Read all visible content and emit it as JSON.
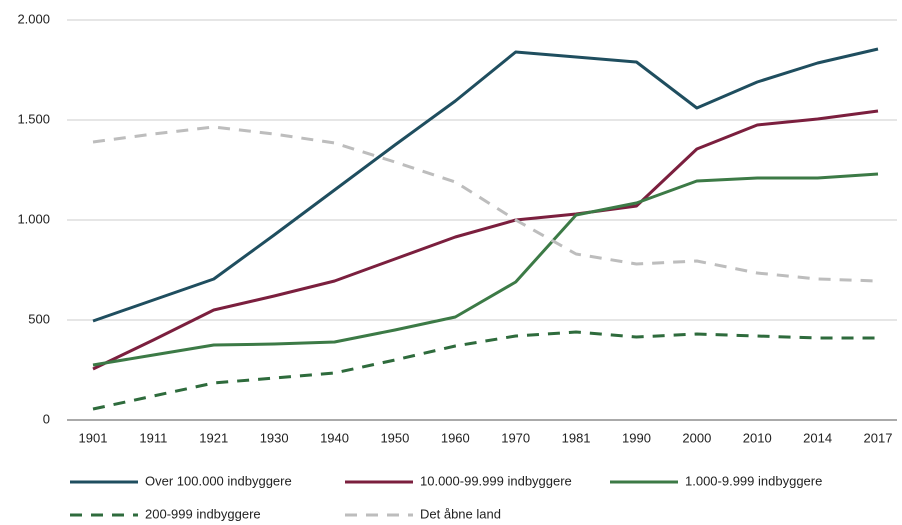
{
  "chart_data": {
    "type": "line",
    "categories": [
      "1901",
      "1911",
      "1921",
      "1930",
      "1940",
      "1950",
      "1960",
      "1970",
      "1981",
      "1990",
      "2000",
      "2010",
      "2014",
      "2017"
    ],
    "series": [
      {
        "name": "Over 100.000 indbyggere",
        "color": "#1f4e5f",
        "line_style": "solid",
        "values": [
          495,
          600,
          705,
          925,
          1150,
          1375,
          1595,
          1840,
          1815,
          1790,
          1560,
          1690,
          1785,
          1855
        ]
      },
      {
        "name": "10.000-99.999 indbyggere",
        "color": "#7b1f3e",
        "line_style": "solid",
        "values": [
          255,
          400,
          550,
          620,
          695,
          805,
          915,
          1000,
          1030,
          1070,
          1355,
          1475,
          1505,
          1545
        ]
      },
      {
        "name": "1.000-9.999 indbyggere",
        "color": "#3c7a46",
        "line_style": "solid",
        "values": [
          275,
          325,
          375,
          380,
          390,
          450,
          515,
          690,
          1025,
          1085,
          1195,
          1210,
          1210,
          1230
        ]
      },
      {
        "name": "200-999 indbyggere",
        "color": "#2e6b3c",
        "line_style": "dashed",
        "values": [
          55,
          120,
          185,
          210,
          235,
          300,
          370,
          420,
          440,
          415,
          430,
          420,
          410,
          410
        ]
      },
      {
        "name": "Det åbne land",
        "color": "#bdbdbd",
        "line_style": "dashed",
        "values": [
          1390,
          1430,
          1465,
          1430,
          1385,
          1290,
          1190,
          1000,
          830,
          780,
          795,
          735,
          705,
          695
        ]
      }
    ],
    "ylim": [
      0,
      2000
    ],
    "yticks": [
      0,
      500,
      {
        "value": 1000,
        "label": "1.000"
      },
      {
        "value": 1500,
        "label": "1.500"
      },
      {
        "value": 2000,
        "label": "2.000"
      }
    ],
    "grid": true,
    "legend": "bottom"
  }
}
